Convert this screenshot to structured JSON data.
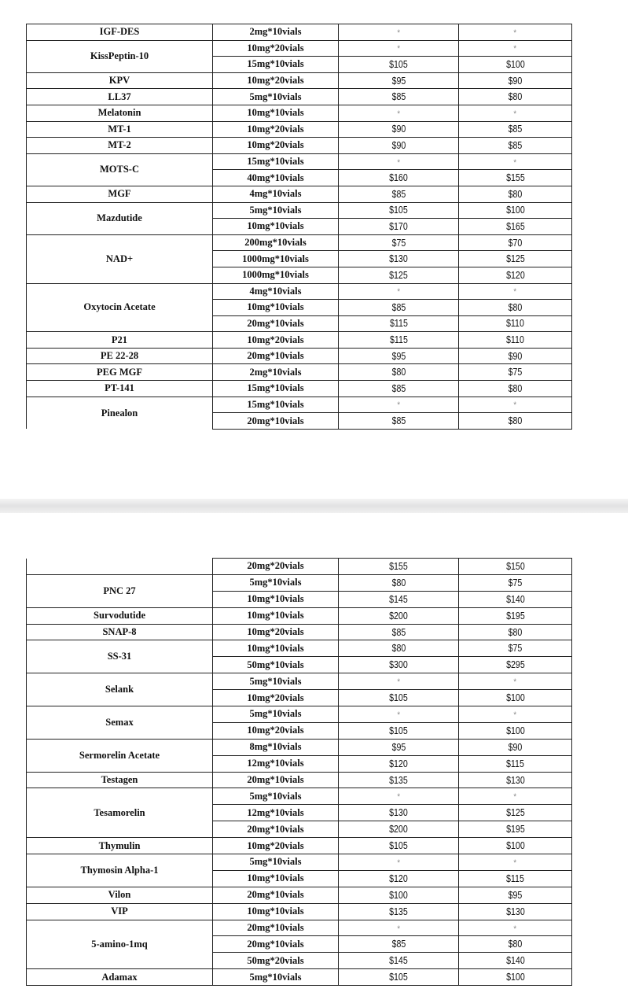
{
  "pages": [
    {
      "groups": [
        {
          "name": "IGF-DES",
          "rows": [
            [
              "2mg*10vials",
              "*",
              "*"
            ]
          ]
        },
        {
          "name": "KissPeptin-10",
          "rows": [
            [
              "10mg*20vials",
              "*",
              "*"
            ],
            [
              "15mg*10vials",
              "$105",
              "$100"
            ]
          ]
        },
        {
          "name": "KPV",
          "rows": [
            [
              "10mg*20vials",
              "$95",
              "$90"
            ]
          ]
        },
        {
          "name": "LL37",
          "rows": [
            [
              "5mg*10vials",
              "$85",
              "$80"
            ]
          ]
        },
        {
          "name": "Melatonin",
          "rows": [
            [
              "10mg*10vials",
              "*",
              "*"
            ]
          ]
        },
        {
          "name": "MT-1",
          "rows": [
            [
              "10mg*20vials",
              "$90",
              "$85"
            ]
          ]
        },
        {
          "name": "MT-2",
          "rows": [
            [
              "10mg*20vials",
              "$90",
              "$85"
            ]
          ]
        },
        {
          "name": "MOTS-C",
          "rows": [
            [
              "15mg*10vials",
              "*",
              "*"
            ],
            [
              "40mg*10vials",
              "$160",
              "$155"
            ]
          ]
        },
        {
          "name": "MGF",
          "rows": [
            [
              "4mg*10vials",
              "$85",
              "$80"
            ]
          ]
        },
        {
          "name": "Mazdutide",
          "rows": [
            [
              "5mg*10vials",
              "$105",
              "$100"
            ],
            [
              "10mg*10vials",
              "$170",
              "$165"
            ]
          ]
        },
        {
          "name": "NAD+",
          "rows": [
            [
              "200mg*10vials",
              "$75",
              "$70"
            ],
            [
              "1000mg*10vials",
              "$130",
              "$125"
            ],
            [
              "1000mg*10vials",
              "$125",
              "$120"
            ]
          ]
        },
        {
          "name": "Oxytocin Acetate",
          "rows": [
            [
              "4mg*10vials",
              "*",
              "*"
            ],
            [
              "10mg*10vials",
              "$85",
              "$80"
            ],
            [
              "20mg*10vials",
              "$115",
              "$110"
            ]
          ]
        },
        {
          "name": "P21",
          "rows": [
            [
              "10mg*20vials",
              "$115",
              "$110"
            ]
          ]
        },
        {
          "name": "PE 22-28",
          "rows": [
            [
              "20mg*10vials",
              "$95",
              "$90"
            ]
          ]
        },
        {
          "name": "PEG MGF",
          "rows": [
            [
              "2mg*10vials",
              "$80",
              "$75"
            ]
          ]
        },
        {
          "name": "PT-141",
          "rows": [
            [
              "15mg*10vials",
              "$85",
              "$80"
            ]
          ]
        },
        {
          "name": "Pinealon",
          "rows": [
            [
              "15mg*10vials",
              "*",
              "*"
            ],
            [
              "20mg*10vials",
              "$85",
              "$80"
            ]
          ],
          "continues": true
        }
      ]
    },
    {
      "groups": [
        {
          "name": "",
          "rows": [
            [
              "20mg*20vials",
              "$155",
              "$150"
            ]
          ],
          "continued": true
        },
        {
          "name": "PNC 27",
          "rows": [
            [
              "5mg*10vials",
              "$80",
              "$75"
            ],
            [
              "10mg*10vials",
              "$145",
              "$140"
            ]
          ]
        },
        {
          "name": "Survodutide",
          "rows": [
            [
              "10mg*10vials",
              "$200",
              "$195"
            ]
          ]
        },
        {
          "name": "SNAP-8",
          "rows": [
            [
              "10mg*20vials",
              "$85",
              "$80"
            ]
          ]
        },
        {
          "name": "SS-31",
          "rows": [
            [
              "10mg*10vials",
              "$80",
              "$75"
            ],
            [
              "50mg*10vials",
              "$300",
              "$295"
            ]
          ]
        },
        {
          "name": "Selank",
          "rows": [
            [
              "5mg*10vials",
              "*",
              "*"
            ],
            [
              "10mg*20vials",
              "$105",
              "$100"
            ]
          ]
        },
        {
          "name": "Semax",
          "rows": [
            [
              "5mg*10vials",
              "*",
              "*"
            ],
            [
              "10mg*20vials",
              "$105",
              "$100"
            ]
          ]
        },
        {
          "name": "Sermorelin Acetate",
          "rows": [
            [
              "8mg*10vials",
              "$95",
              "$90"
            ],
            [
              "12mg*10vials",
              "$120",
              "$115"
            ]
          ]
        },
        {
          "name": "Testagen",
          "rows": [
            [
              "20mg*10vials",
              "$135",
              "$130"
            ]
          ]
        },
        {
          "name": "Tesamorelin",
          "rows": [
            [
              "5mg*10vials",
              "*",
              "*"
            ],
            [
              "12mg*10vials",
              "$130",
              "$125"
            ],
            [
              "20mg*10vials",
              "$200",
              "$195"
            ]
          ]
        },
        {
          "name": "Thymulin",
          "rows": [
            [
              "10mg*20vials",
              "$105",
              "$100"
            ]
          ]
        },
        {
          "name": "Thymosin Alpha-1",
          "rows": [
            [
              "5mg*10vials",
              "*",
              "*"
            ],
            [
              "10mg*10vials",
              "$120",
              "$115"
            ]
          ]
        },
        {
          "name": "Vilon",
          "rows": [
            [
              "20mg*10vials",
              "$100",
              "$95"
            ]
          ]
        },
        {
          "name": "VIP",
          "rows": [
            [
              "10mg*10vials",
              "$135",
              "$130"
            ]
          ]
        },
        {
          "name": "5-amino-1mq",
          "rows": [
            [
              "20mg*10vials",
              "*",
              "*"
            ],
            [
              "20mg*10vials",
              "$85",
              "$80"
            ],
            [
              "50mg*20vials",
              "$145",
              "$140"
            ]
          ]
        },
        {
          "name": "Adamax",
          "rows": [
            [
              "5mg*10vials",
              "$105",
              "$100"
            ]
          ]
        }
      ]
    }
  ]
}
